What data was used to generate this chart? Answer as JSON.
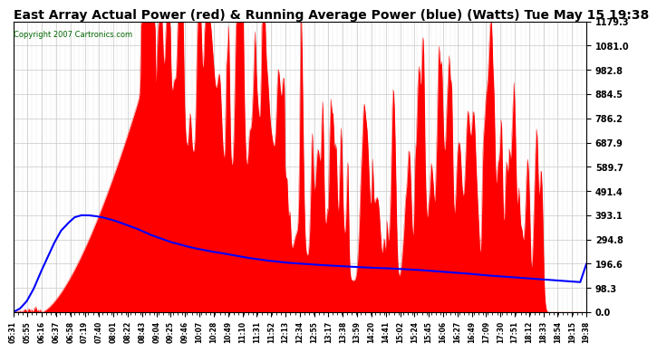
{
  "title": "East Array Actual Power (red) & Running Average Power (blue) (Watts) Tue May 15 19:38",
  "copyright": "Copyright 2007 Cartronics.com",
  "title_fontsize": 10,
  "background_color": "#ffffff",
  "plot_bg_color": "#ffffff",
  "grid_color": "#c8c8c8",
  "red_color": "#ff0000",
  "blue_color": "#0000ff",
  "ylim": [
    0.0,
    1179.3
  ],
  "yticks": [
    0.0,
    98.3,
    196.6,
    294.8,
    393.1,
    491.4,
    589.7,
    687.9,
    786.2,
    884.5,
    982.8,
    1081.0,
    1179.3
  ],
  "xtick_labels": [
    "05:31",
    "05:55",
    "06:16",
    "06:37",
    "06:58",
    "07:19",
    "07:40",
    "08:01",
    "08:22",
    "08:43",
    "09:04",
    "09:25",
    "09:46",
    "10:07",
    "10:28",
    "10:49",
    "11:10",
    "11:31",
    "11:52",
    "12:13",
    "12:34",
    "12:55",
    "13:17",
    "13:38",
    "13:59",
    "14:20",
    "14:41",
    "15:02",
    "15:24",
    "15:45",
    "16:06",
    "16:27",
    "16:49",
    "17:09",
    "17:30",
    "17:51",
    "18:12",
    "18:33",
    "18:54",
    "19:15",
    "19:38"
  ],
  "num_points": 840,
  "ra_points": [
    [
      0,
      0
    ],
    [
      10,
      15
    ],
    [
      20,
      45
    ],
    [
      30,
      95
    ],
    [
      40,
      160
    ],
    [
      50,
      220
    ],
    [
      60,
      280
    ],
    [
      70,
      330
    ],
    [
      80,
      360
    ],
    [
      90,
      385
    ],
    [
      100,
      393
    ],
    [
      110,
      393
    ],
    [
      120,
      390
    ],
    [
      130,
      385
    ],
    [
      140,
      378
    ],
    [
      150,
      370
    ],
    [
      160,
      360
    ],
    [
      170,
      350
    ],
    [
      180,
      340
    ],
    [
      190,
      328
    ],
    [
      200,
      315
    ],
    [
      210,
      305
    ],
    [
      220,
      295
    ],
    [
      230,
      285
    ],
    [
      240,
      278
    ],
    [
      250,
      270
    ],
    [
      260,
      263
    ],
    [
      270,
      257
    ],
    [
      280,
      252
    ],
    [
      290,
      246
    ],
    [
      300,
      242
    ],
    [
      310,
      237
    ],
    [
      320,
      232
    ],
    [
      330,
      227
    ],
    [
      340,
      222
    ],
    [
      350,
      218
    ],
    [
      360,
      214
    ],
    [
      370,
      210
    ],
    [
      380,
      207
    ],
    [
      390,
      204
    ],
    [
      400,
      201
    ],
    [
      410,
      199
    ],
    [
      420,
      197
    ],
    [
      430,
      195
    ],
    [
      440,
      193
    ],
    [
      450,
      191
    ],
    [
      460,
      190
    ],
    [
      470,
      188
    ],
    [
      480,
      187
    ],
    [
      490,
      185
    ],
    [
      500,
      184
    ],
    [
      510,
      182
    ],
    [
      520,
      181
    ],
    [
      530,
      180
    ],
    [
      540,
      179
    ],
    [
      550,
      178
    ],
    [
      560,
      176
    ],
    [
      570,
      175
    ],
    [
      580,
      173
    ],
    [
      590,
      172
    ],
    [
      600,
      170
    ],
    [
      610,
      168
    ],
    [
      620,
      166
    ],
    [
      630,
      164
    ],
    [
      640,
      162
    ],
    [
      650,
      160
    ],
    [
      660,
      158
    ],
    [
      670,
      155
    ],
    [
      680,
      153
    ],
    [
      690,
      150
    ],
    [
      700,
      148
    ],
    [
      710,
      146
    ],
    [
      720,
      144
    ],
    [
      730,
      142
    ],
    [
      740,
      140
    ],
    [
      750,
      138
    ],
    [
      760,
      136
    ],
    [
      770,
      134
    ],
    [
      780,
      132
    ],
    [
      790,
      130
    ],
    [
      800,
      128
    ],
    [
      810,
      126
    ],
    [
      820,
      124
    ],
    [
      830,
      122
    ],
    [
      839,
      196
    ]
  ]
}
